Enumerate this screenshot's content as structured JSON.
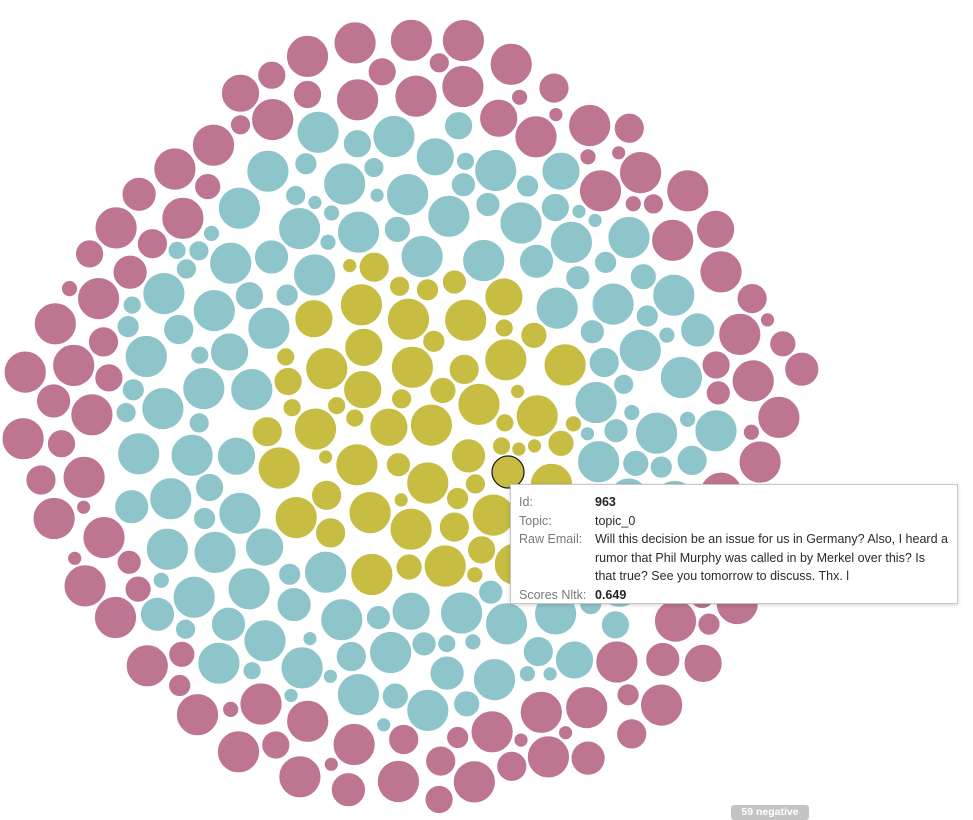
{
  "chart_data": {
    "type": "packed-bubble",
    "title": "",
    "categories": [
      "Yellow group (center)",
      "Teal group (middle ring)",
      "Pink group (outer ring)"
    ],
    "colors": {
      "center": "#c6bd42",
      "middle": "#8ec5cb",
      "outer": "#bd7591",
      "highlight_stroke": "#222222"
    },
    "approx_counts": {
      "center": 90,
      "middle": 200,
      "outer": 230
    },
    "legend": "none",
    "grid": false
  },
  "tooltip": {
    "rows": [
      {
        "label": "Id:",
        "value": "963"
      },
      {
        "label": "Topic:",
        "value": "topic_0"
      },
      {
        "label": "Raw Email:",
        "value": "Will this decision be an issue for us in Germany? Also, I heard a rumor that Phil Murphy was called in by Merkel over this? Is that true? See you tomorrow to discuss. Thx. l"
      },
      {
        "label": "Scores Nltk:",
        "value": "0.649"
      }
    ]
  },
  "badge": {
    "text": "59 negative"
  }
}
